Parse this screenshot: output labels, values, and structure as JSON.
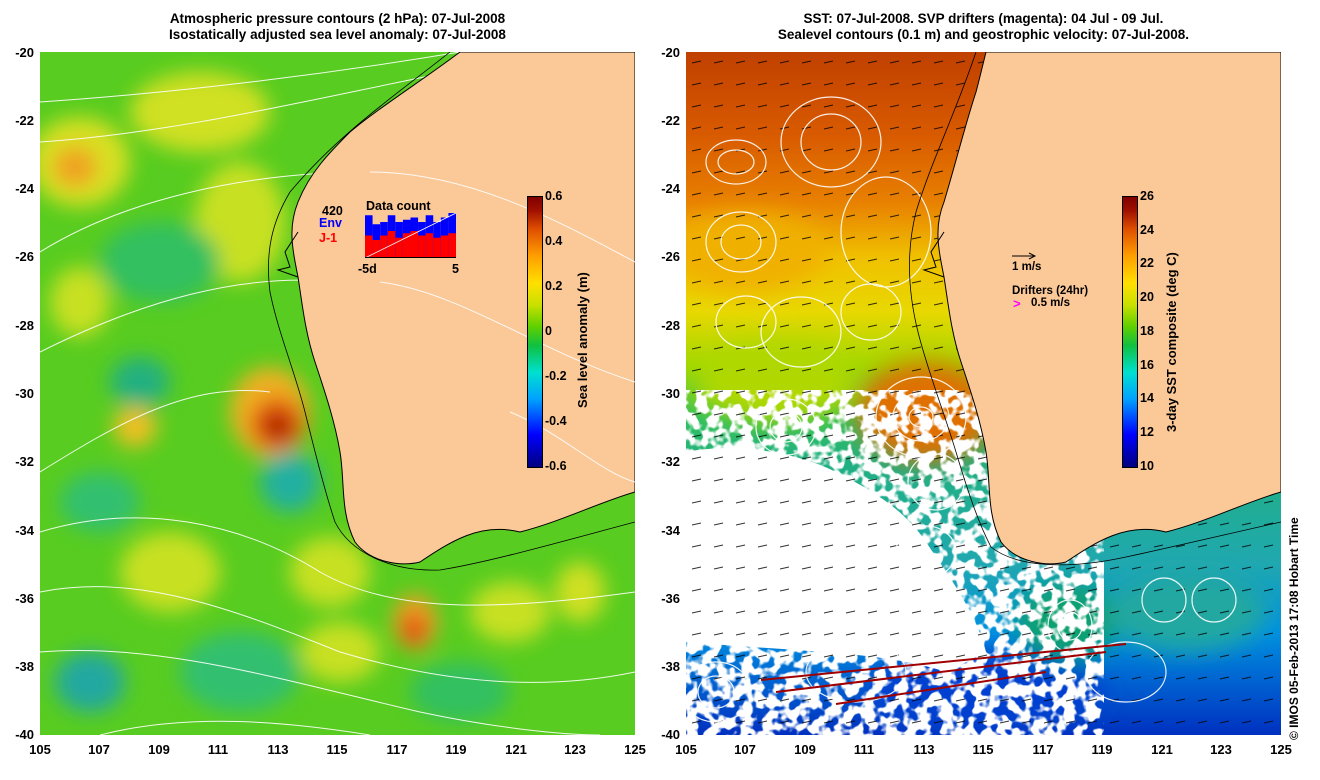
{
  "titles": {
    "left_line1": "Atmospheric pressure contours (2 hPa): 07-Jul-2008",
    "left_line2": "Isostatically adjusted sea level anomaly: 07-Jul-2008",
    "right_line1": "SST: 07-Jul-2008. SVP drifters (magenta): 04 Jul - 09 Jul.",
    "right_line2": "Sealevel contours (0.1 m) and geostrophic velocity: 07-Jul-2008."
  },
  "axes": {
    "y_ticks": [
      "-20",
      "-22",
      "-24",
      "-26",
      "-28",
      "-30",
      "-32",
      "-34",
      "-36",
      "-38",
      "-40"
    ],
    "x_ticks": [
      "105",
      "107",
      "109",
      "111",
      "113",
      "115",
      "117",
      "119",
      "121",
      "123",
      "125"
    ],
    "lon_range": [
      105,
      125
    ],
    "lat_range": [
      -40,
      -20
    ]
  },
  "left_colorbar": {
    "label": "Sea level anomaly (m)",
    "ticks": [
      "0.6",
      "0.4",
      "0.2",
      "0",
      "-0.2",
      "-0.4",
      "-0.6"
    ],
    "range": [
      -0.6,
      0.6
    ]
  },
  "right_colorbar": {
    "label": "3-day SST composite (deg C)",
    "ticks": [
      "26",
      "24",
      "22",
      "20",
      "18",
      "16",
      "14",
      "12",
      "10"
    ],
    "range": [
      10,
      26
    ]
  },
  "data_count": {
    "total": "420",
    "series_env": "Env",
    "series_j1": "J-1",
    "title": "Data count",
    "x_min_label": "-5d",
    "x_max_label": "5",
    "env_color": "#0000ff",
    "j1_color": "#ff0000",
    "env_values": [
      0.95,
      0.75,
      0.8,
      0.95,
      0.8,
      0.85,
      0.9,
      0.8,
      0.95,
      0.8,
      0.9,
      1.0
    ],
    "j1_values": [
      0.5,
      0.4,
      0.5,
      0.6,
      0.45,
      0.55,
      0.6,
      0.5,
      0.55,
      0.45,
      0.5,
      0.55
    ]
  },
  "legend": {
    "velocity_scale": "1 m/s",
    "drifters_title": "Drifters (24hr)",
    "drifters_symbol": ">",
    "drifters_scale": "0.5 m/s",
    "drifter_color": "#ff00ff"
  },
  "copyright": "© IMOS 05-Feb-2013 17:08 Hobart Time",
  "colors": {
    "land": "#fbc898",
    "coast": "#000000",
    "contour": "#ffffff"
  }
}
